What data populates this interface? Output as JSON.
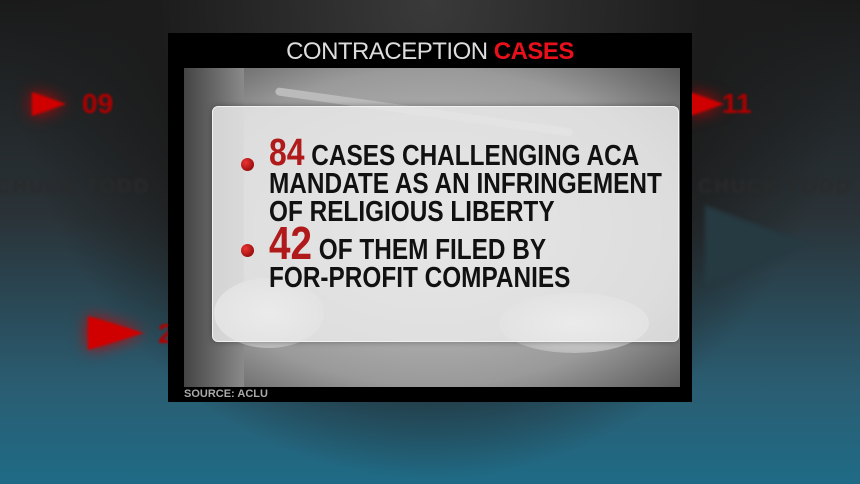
{
  "background": {
    "numbers": [
      "09",
      "11",
      "2"
    ],
    "names": [
      "CHUCK TODD",
      "CHUCK TODD"
    ]
  },
  "graphic": {
    "title_plain": "CONTRACEPTION",
    "title_highlight": "CASES",
    "accent_color": "#e8101a",
    "number_color": "#b11a1a",
    "bullets": [
      {
        "number": "84",
        "lines": [
          "CASES CHALLENGING ACA",
          "MANDATE AS AN INFRINGEMENT",
          "OF RELIGIOUS LIBERTY"
        ]
      },
      {
        "number": "42",
        "lines": [
          "OF THEM FILED BY",
          "FOR-PROFIT COMPANIES"
        ]
      }
    ],
    "source": "SOURCE: ACLU"
  }
}
